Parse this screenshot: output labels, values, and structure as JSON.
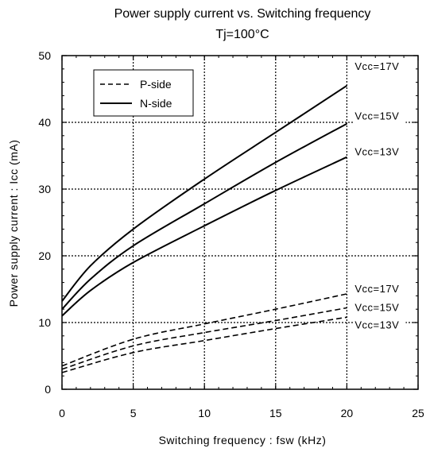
{
  "chart_data": {
    "type": "line",
    "title": "Power supply current vs. Switching frequency",
    "subtitle": "Tj=100°C",
    "xlabel": "Switching frequency : fsw (kHz)",
    "ylabel": "Power supply current : Icc (mA)",
    "xlim": [
      0,
      25
    ],
    "ylim": [
      0,
      50
    ],
    "xticks": [
      "0",
      "5",
      "10",
      "15",
      "20",
      "25"
    ],
    "yticks": [
      "0",
      "10",
      "20",
      "30",
      "40",
      "50"
    ],
    "grid": true,
    "legend": {
      "placement": "top-left",
      "entries": [
        {
          "label": "P-side",
          "style": "dashed"
        },
        {
          "label": "N-side",
          "style": "solid"
        }
      ]
    },
    "series": [
      {
        "group": "N-side",
        "style": "solid",
        "label": "Vcc=17V",
        "x": [
          0,
          2,
          5,
          10,
          15,
          20
        ],
        "y": [
          13.2,
          18.5,
          24,
          31.5,
          38.5,
          45.5
        ]
      },
      {
        "group": "N-side",
        "style": "solid",
        "label": "Vcc=15V",
        "x": [
          0,
          2,
          5,
          10,
          15,
          20
        ],
        "y": [
          12,
          16.5,
          21.5,
          27.8,
          34,
          39.8
        ]
      },
      {
        "group": "N-side",
        "style": "solid",
        "label": "Vcc=13V",
        "x": [
          0,
          2,
          5,
          10,
          15,
          20
        ],
        "y": [
          11,
          14.8,
          19,
          24.5,
          29.8,
          34.8
        ]
      },
      {
        "group": "P-side",
        "style": "dashed",
        "label": "Vcc=17V",
        "x": [
          0,
          5,
          10,
          15,
          20
        ],
        "y": [
          3.5,
          7.5,
          9.8,
          12,
          14.3
        ]
      },
      {
        "group": "P-side",
        "style": "dashed",
        "label": "Vcc=15V",
        "x": [
          0,
          5,
          10,
          15,
          20
        ],
        "y": [
          3,
          6.5,
          8.5,
          10.3,
          12.2
        ]
      },
      {
        "group": "P-side",
        "style": "dashed",
        "label": "Vcc=13V",
        "x": [
          0,
          5,
          10,
          15,
          20
        ],
        "y": [
          2.5,
          5.5,
          7.3,
          9.1,
          10.8
        ]
      }
    ]
  }
}
